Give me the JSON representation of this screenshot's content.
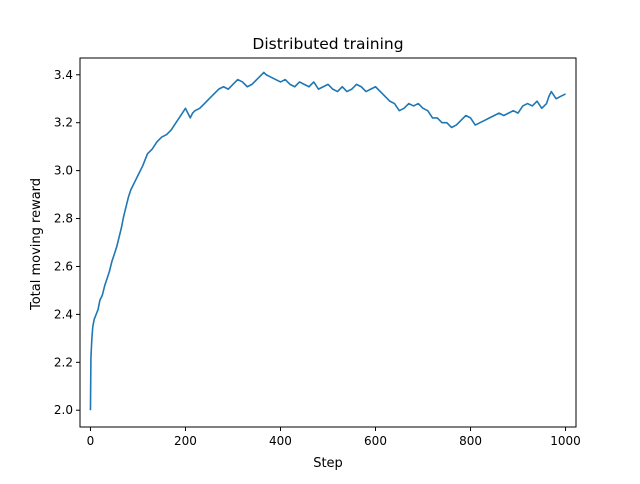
{
  "chart_data": {
    "type": "line",
    "title": "Distributed training",
    "xlabel": "Step",
    "ylabel": "Total moving reward",
    "xlim": [
      -22,
      1022
    ],
    "ylim": [
      1.93,
      3.47
    ],
    "xticks": [
      0,
      200,
      400,
      600,
      800,
      1000
    ],
    "yticks": [
      2.0,
      2.2,
      2.4,
      2.6,
      2.8,
      3.0,
      3.2,
      3.4
    ],
    "ytick_labels": [
      "2.0",
      "2.2",
      "2.4",
      "2.6",
      "2.8",
      "3.0",
      "3.2",
      "3.4"
    ],
    "grid": false,
    "series": [
      {
        "name": "",
        "color": "#1f77b4",
        "x": [
          0,
          1,
          3,
          5,
          8,
          12,
          16,
          20,
          25,
          30,
          35,
          40,
          45,
          50,
          55,
          60,
          65,
          70,
          75,
          80,
          85,
          90,
          95,
          100,
          110,
          120,
          130,
          140,
          150,
          160,
          170,
          180,
          190,
          200,
          205,
          210,
          215,
          220,
          230,
          240,
          250,
          260,
          270,
          280,
          290,
          300,
          310,
          320,
          330,
          340,
          350,
          360,
          365,
          370,
          380,
          390,
          400,
          410,
          420,
          430,
          440,
          450,
          460,
          470,
          480,
          490,
          500,
          510,
          520,
          530,
          540,
          550,
          560,
          570,
          580,
          590,
          600,
          610,
          620,
          630,
          640,
          650,
          660,
          670,
          680,
          690,
          700,
          710,
          720,
          730,
          740,
          750,
          760,
          770,
          780,
          790,
          800,
          810,
          820,
          830,
          840,
          850,
          860,
          870,
          880,
          890,
          900,
          910,
          920,
          930,
          940,
          950,
          960,
          965,
          970,
          980,
          990,
          1000
        ],
        "y": [
          2.0,
          2.22,
          2.3,
          2.35,
          2.38,
          2.4,
          2.42,
          2.46,
          2.48,
          2.52,
          2.55,
          2.58,
          2.62,
          2.65,
          2.68,
          2.72,
          2.76,
          2.81,
          2.85,
          2.89,
          2.92,
          2.94,
          2.96,
          2.98,
          3.02,
          3.07,
          3.09,
          3.12,
          3.14,
          3.15,
          3.17,
          3.2,
          3.23,
          3.26,
          3.24,
          3.22,
          3.24,
          3.25,
          3.26,
          3.28,
          3.3,
          3.32,
          3.34,
          3.35,
          3.34,
          3.36,
          3.38,
          3.37,
          3.35,
          3.36,
          3.38,
          3.4,
          3.41,
          3.4,
          3.39,
          3.38,
          3.37,
          3.38,
          3.36,
          3.35,
          3.37,
          3.36,
          3.35,
          3.37,
          3.34,
          3.35,
          3.36,
          3.34,
          3.33,
          3.35,
          3.33,
          3.34,
          3.36,
          3.35,
          3.33,
          3.34,
          3.35,
          3.33,
          3.31,
          3.29,
          3.28,
          3.25,
          3.26,
          3.28,
          3.27,
          3.28,
          3.26,
          3.25,
          3.22,
          3.22,
          3.2,
          3.2,
          3.18,
          3.19,
          3.21,
          3.23,
          3.22,
          3.19,
          3.2,
          3.21,
          3.22,
          3.23,
          3.24,
          3.23,
          3.24,
          3.25,
          3.24,
          3.27,
          3.28,
          3.27,
          3.29,
          3.26,
          3.28,
          3.31,
          3.33,
          3.3,
          3.31,
          3.32
        ]
      }
    ]
  }
}
